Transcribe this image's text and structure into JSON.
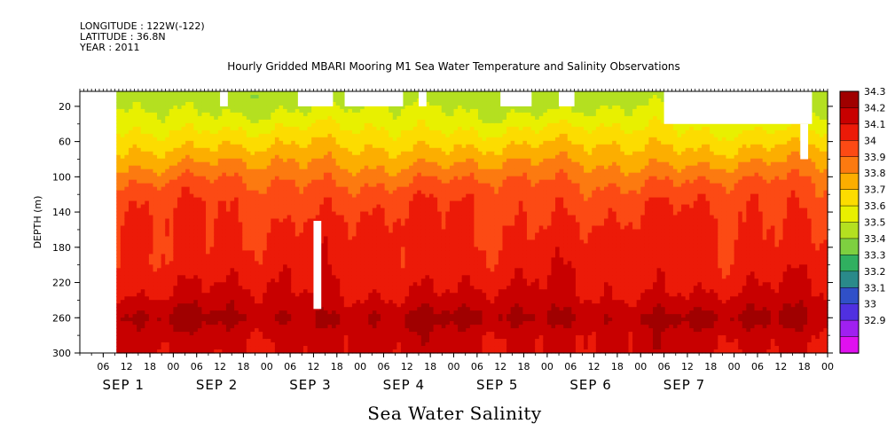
{
  "header": {
    "lines": [
      "LONGITUDE : 122W(-122)",
      "LATITUDE : 36.8N",
      "YEAR : 2011"
    ],
    "title": "Hourly Gridded MBARI Mooring M1 Sea Water Temperature and Salinity Observations"
  },
  "footer": {
    "variable_title": "Sea Water Salinity"
  },
  "chart_data": {
    "type": "heatmap",
    "title": "Hourly Gridded MBARI Mooring M1 Sea Water Temperature and Salinity Observations",
    "ylabel": "DEPTH (m)",
    "ylim": [
      0,
      300
    ],
    "y_inverted": true,
    "yticks": [
      20,
      60,
      100,
      140,
      180,
      220,
      260,
      300
    ],
    "x_hour_ticks": [
      "06",
      "12",
      "18",
      "00",
      "06",
      "12",
      "18",
      "00",
      "06",
      "12",
      "18",
      "00",
      "06",
      "12",
      "18",
      "00",
      "06",
      "12",
      "18",
      "00",
      "06",
      "12",
      "18",
      "00",
      "06",
      "12",
      "18",
      "00",
      "06",
      "12",
      "18",
      "00"
    ],
    "x_day_labels": [
      "SEP 1",
      "SEP 2",
      "SEP 3",
      "SEP 4",
      "SEP 5",
      "SEP 6",
      "SEP 7"
    ],
    "xlim_hours_since_sep1_00": [
      0,
      192
    ],
    "data_start_hour": 9,
    "colorbar": {
      "levels": [
        "34.3",
        "34.2",
        "34.1",
        "34",
        "33.9",
        "33.8",
        "33.7",
        "33.6",
        "33.5",
        "33.4",
        "33.3",
        "33.2",
        "33.1",
        "33",
        "32.9"
      ],
      "colors": [
        "#a00000",
        "#c80000",
        "#ec1a08",
        "#fc4a14",
        "#fc7a10",
        "#fcae00",
        "#fcdc00",
        "#e8f000",
        "#b4e020",
        "#7ed040",
        "#30b060",
        "#2a8a8a",
        "#3050c8",
        "#5030e0",
        "#a020f0",
        "#e010f0"
      ]
    },
    "depth_profile": [
      {
        "depth": 10,
        "value": 33.55
      },
      {
        "depth": 30,
        "value": 33.62
      },
      {
        "depth": 50,
        "value": 33.72
      },
      {
        "depth": 70,
        "value": 33.82
      },
      {
        "depth": 90,
        "value": 33.92
      },
      {
        "depth": 110,
        "value": 34.02
      },
      {
        "depth": 130,
        "value": 34.08
      },
      {
        "depth": 160,
        "value": 34.12
      },
      {
        "depth": 200,
        "value": 34.15
      },
      {
        "depth": 230,
        "value": 34.2
      },
      {
        "depth": 250,
        "value": 34.27
      },
      {
        "depth": 260,
        "value": 34.32
      },
      {
        "depth": 280,
        "value": 34.24
      },
      {
        "depth": 300,
        "value": 34.22
      }
    ],
    "missing_data": [
      {
        "hours": [
          0,
          9
        ],
        "depth": [
          0,
          300
        ]
      },
      {
        "hours": [
          36,
          38
        ],
        "depth": [
          10,
          20
        ]
      },
      {
        "hours": [
          56,
          65
        ],
        "depth": [
          10,
          20
        ]
      },
      {
        "hours": [
          68,
          83
        ],
        "depth": [
          10,
          20
        ]
      },
      {
        "hours": [
          87,
          89
        ],
        "depth": [
          10,
          20
        ]
      },
      {
        "hours": [
          108,
          116
        ],
        "depth": [
          10,
          20
        ]
      },
      {
        "hours": [
          123,
          127
        ],
        "depth": [
          10,
          20
        ]
      },
      {
        "hours": [
          150,
          188
        ],
        "depth": [
          10,
          40
        ]
      },
      {
        "hours": [
          185,
          187
        ],
        "depth": [
          40,
          80
        ]
      },
      {
        "hours": [
          60,
          62
        ],
        "depth": [
          150,
          250
        ]
      }
    ]
  }
}
